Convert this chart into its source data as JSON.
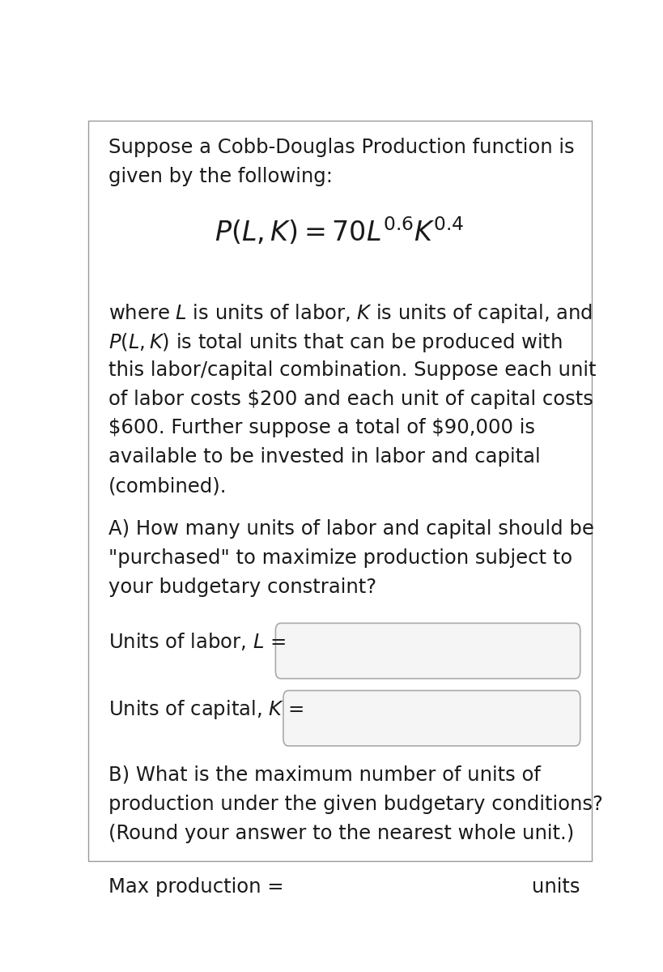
{
  "bg_color": "#ffffff",
  "text_color": "#1a1a1a",
  "border_color": "#aaaaaa",
  "intro_line1": "Suppose a Cobb-Douglas Production function is",
  "intro_line2": "given by the following:",
  "para1_lines": [
    "where  is units of labor,  is units of capital, and",
    " is total units that can be produced with",
    "this labor/capital combination. Suppose each unit",
    "of labor costs $200 and each unit of capital costs",
    "$600. Further suppose a total of $90,000 is",
    "available to be invested in labor and capital",
    "(combined)."
  ],
  "question_a_lines": [
    "A) How many units of labor and capital should be",
    "\"purchased\" to maximize production subject to",
    "your budgetary constraint?"
  ],
  "question_b_lines": [
    "B) What is the maximum number of units of",
    "production under the given budgetary conditions?",
    "(Round your answer to the nearest whole unit.)"
  ],
  "label_units_text": "units",
  "font_size_main": 17.5,
  "font_size_formula": 24,
  "bg_color_box": "#f5f5f5",
  "fig_width": 8.19,
  "fig_height": 12.0
}
